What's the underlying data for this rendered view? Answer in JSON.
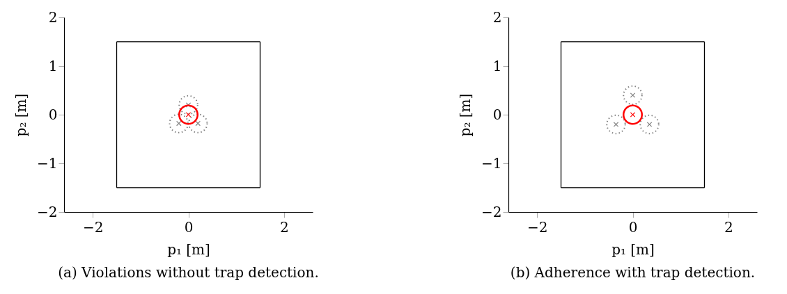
{
  "chart_data": [
    {
      "type": "scatter",
      "title": "(a) Violations without trap detection.",
      "xlabel": "p₁ [m]",
      "ylabel": "p₂ [m]",
      "xlim": [
        -2.6,
        2.6
      ],
      "ylim": [
        -2,
        2
      ],
      "xticks": [
        -2,
        0,
        2
      ],
      "yticks": [
        -2,
        -1,
        0,
        1,
        2
      ],
      "grid": false,
      "series": [
        {
          "type": "line",
          "color": "#000000",
          "x": [
            -1.5,
            1.5
          ],
          "values": [
            1.5,
            1.5
          ],
          "marker": "none",
          "line_style": "solid"
        },
        {
          "type": "line",
          "color": "#000000",
          "x": [
            -1.5,
            1.5
          ],
          "values": [
            -1.5,
            -1.5
          ],
          "marker": "none",
          "line_style": "solid"
        },
        {
          "type": "line",
          "color": "#000000",
          "x": [
            -1.5,
            -1.5
          ],
          "values": [
            -1.5,
            1.5
          ],
          "marker": "none",
          "line_style": "solid"
        },
        {
          "type": "line",
          "color": "#000000",
          "x": [
            1.5,
            1.5
          ],
          "values": [
            -1.5,
            1.5
          ],
          "marker": "none",
          "line_style": "solid"
        },
        {
          "type": "bubble",
          "color": "#808080",
          "x": [
            0,
            -0.2,
            0.2
          ],
          "values": [
            0.2,
            -0.18,
            -0.18
          ],
          "sizes": [
            1,
            1,
            1
          ],
          "marker": "circle",
          "line_style": "dotted"
        },
        {
          "color": "#808080",
          "x": [
            0,
            -0.2,
            0.2
          ],
          "values": [
            0.2,
            -0.18,
            -0.18
          ],
          "marker": "cross"
        },
        {
          "type": "bubble",
          "color": "#ff0000",
          "x": [
            0
          ],
          "values": [
            0
          ],
          "sizes": [
            1
          ],
          "marker": "circle",
          "line_style": "solid"
        },
        {
          "type": "scatter",
          "color": "#ff0000",
          "x": [
            0
          ],
          "values": [
            0
          ],
          "marker": "cross"
        }
      ]
    },
    {
      "type": "scatter",
      "title": "(b) Adherence with trap detection.",
      "xlabel": "p₁ [m]",
      "ylabel": "p₂ [m]",
      "xlim": [
        -2.6,
        2.6
      ],
      "ylim": [
        -2,
        2
      ],
      "xticks": [
        -2,
        0,
        2
      ],
      "yticks": [
        -2,
        -1,
        0,
        1,
        2
      ],
      "grid": false,
      "series": [
        {
          "type": "line",
          "color": "#000000",
          "x": [
            -1.5,
            1.5
          ],
          "values": [
            1.5,
            1.5
          ],
          "marker": "none",
          "line_style": "solid"
        },
        {
          "type": "line",
          "color": "#000000",
          "x": [
            -1.5,
            1.5
          ],
          "values": [
            -1.5,
            -1.5
          ],
          "marker": "none",
          "line_style": "solid"
        },
        {
          "type": "line",
          "color": "#000000",
          "x": [
            -1.5,
            -1.5
          ],
          "values": [
            -1.5,
            1.5
          ],
          "marker": "none",
          "line_style": "solid"
        },
        {
          "type": "line",
          "color": "#000000",
          "x": [
            1.5,
            1.5
          ],
          "values": [
            -1.5,
            1.5
          ],
          "marker": "none",
          "line_style": "solid"
        },
        {
          "type": "bubble",
          "color": "#808080",
          "x": [
            0,
            -0.35,
            0.35
          ],
          "values": [
            0.4,
            -0.2,
            -0.2
          ],
          "sizes": [
            1,
            1,
            1
          ],
          "marker": "circle",
          "line_style": "dotted"
        },
        {
          "color": "#808080",
          "x": [
            0,
            -0.35,
            0.35
          ],
          "values": [
            0.4,
            -0.2,
            -0.2
          ],
          "marker": "cross"
        },
        {
          "type": "bubble",
          "color": "#ff0000",
          "x": [
            0
          ],
          "values": [
            0
          ],
          "sizes": [
            1
          ],
          "marker": "circle",
          "line_style": "solid"
        },
        {
          "type": "scatter",
          "color": "#ff0000",
          "x": [
            0
          ],
          "values": [
            0
          ],
          "marker": "cross"
        }
      ]
    }
  ]
}
